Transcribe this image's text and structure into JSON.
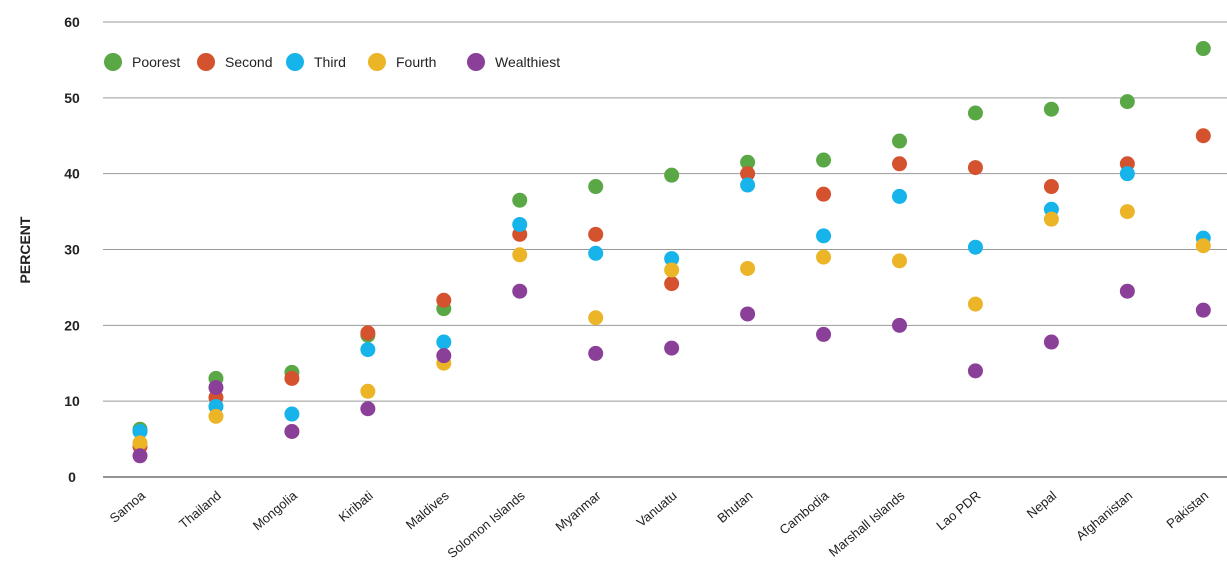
{
  "chart_data": {
    "type": "scatter",
    "ylabel": "PERCENT",
    "xlabel": "",
    "ylim": [
      0,
      60
    ],
    "yticks": [
      0,
      10,
      20,
      30,
      40,
      50,
      60
    ],
    "grid": true,
    "legend_position": "top-left",
    "categories": [
      "Samoa",
      "Thailand",
      "Mongolia",
      "Kiribati",
      "Maldives",
      "Solomon Islands",
      "Myanmar",
      "Vanuatu",
      "Bhutan",
      "Cambodia",
      "Marshall Islands",
      "Lao PDR",
      "Nepal",
      "Afghanistan",
      "Pakistan"
    ],
    "series": [
      {
        "name": "Poorest",
        "color": "#5aa746",
        "values": [
          6.3,
          13.0,
          13.8,
          18.7,
          22.2,
          36.5,
          38.3,
          39.8,
          41.5,
          41.8,
          44.3,
          48.0,
          48.5,
          49.5,
          56.5
        ]
      },
      {
        "name": "Second",
        "color": "#d5522f",
        "values": [
          4.0,
          10.5,
          13.0,
          19.0,
          23.3,
          32.0,
          32.0,
          25.5,
          40.0,
          37.3,
          41.3,
          40.8,
          38.3,
          41.3,
          45.0
        ]
      },
      {
        "name": "Third",
        "color": "#16b4ea",
        "values": [
          6.0,
          9.3,
          8.3,
          16.8,
          17.8,
          33.3,
          29.5,
          28.8,
          38.5,
          31.8,
          37.0,
          30.3,
          35.3,
          40.0,
          31.5
        ]
      },
      {
        "name": "Fourth",
        "color": "#ecb528",
        "values": [
          4.5,
          8.0,
          6.0,
          11.3,
          15.0,
          29.3,
          21.0,
          27.3,
          27.5,
          29.0,
          28.5,
          22.8,
          34.0,
          35.0,
          30.5
        ]
      },
      {
        "name": "Wealthiest",
        "color": "#8a3f98",
        "values": [
          2.8,
          11.8,
          6.0,
          9.0,
          16.0,
          24.5,
          16.3,
          17.0,
          21.5,
          18.8,
          20.0,
          14.0,
          17.8,
          24.5,
          22.0
        ]
      }
    ]
  }
}
